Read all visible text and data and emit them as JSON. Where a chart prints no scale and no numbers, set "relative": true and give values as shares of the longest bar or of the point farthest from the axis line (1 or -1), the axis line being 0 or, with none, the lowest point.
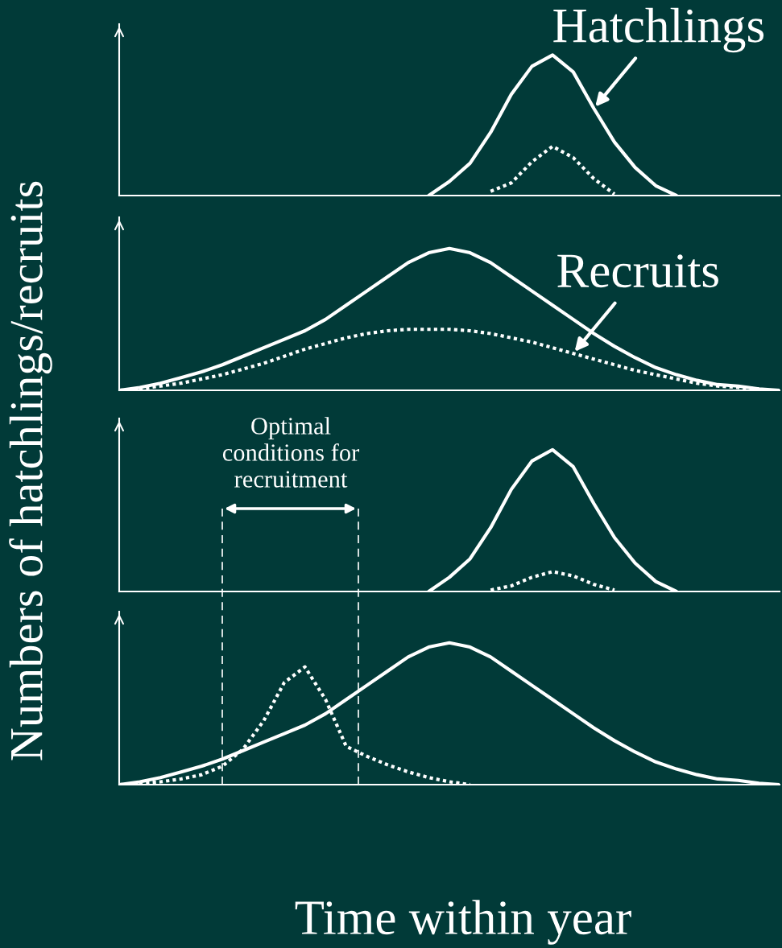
{
  "chart_data": [
    {
      "type": "line",
      "relative": true,
      "ylabel": "Numbers of hatchlings/recruits",
      "categories": [
        null,
        null,
        null,
        null,
        null,
        null,
        null,
        null,
        null,
        null,
        null,
        null,
        null,
        null,
        null,
        null,
        null,
        null,
        null,
        null,
        null,
        null,
        null,
        null,
        null,
        null,
        null,
        null,
        null,
        null,
        null,
        null,
        null
      ],
      "series": [
        {
          "name": "Hatchlings",
          "color": "#ffffff",
          "line_style": "solid",
          "values": [
            null,
            null,
            null,
            null,
            null,
            null,
            null,
            null,
            null,
            null,
            null,
            null,
            null,
            null,
            null,
            0.0,
            0.1,
            0.23,
            0.45,
            0.72,
            0.92,
            1.0,
            0.88,
            0.62,
            0.38,
            0.2,
            0.07,
            0.0,
            null,
            null,
            null,
            null,
            null
          ]
        },
        {
          "color": "#ffffff",
          "line_style": "dotted",
          "values": [
            null,
            null,
            null,
            null,
            null,
            null,
            null,
            null,
            null,
            null,
            null,
            null,
            null,
            null,
            null,
            null,
            null,
            null,
            0.03,
            0.09,
            0.24,
            0.35,
            0.27,
            0.12,
            0.01,
            null,
            null,
            null,
            null,
            null,
            null,
            null,
            null
          ]
        }
      ]
    },
    {
      "type": "line",
      "relative": true,
      "categories": [
        null,
        null,
        null,
        null,
        null,
        null,
        null,
        null,
        null,
        null,
        null,
        null,
        null,
        null,
        null,
        null,
        null,
        null,
        null,
        null,
        null,
        null,
        null,
        null,
        null,
        null,
        null,
        null,
        null,
        null,
        null,
        null,
        null
      ],
      "series": [
        {
          "color": "#ffffff",
          "line_style": "solid",
          "values": [
            0.0,
            0.02,
            0.05,
            0.09,
            0.13,
            0.18,
            0.24,
            0.3,
            0.36,
            0.42,
            0.5,
            0.6,
            0.7,
            0.8,
            0.9,
            0.97,
            1.0,
            0.97,
            0.9,
            0.8,
            0.7,
            0.6,
            0.5,
            0.4,
            0.31,
            0.23,
            0.16,
            0.11,
            0.07,
            0.04,
            0.03,
            0.01,
            0.0
          ]
        },
        {
          "name": "Recruits",
          "color": "#ffffff",
          "line_style": "dotted",
          "values": [
            0.0,
            0.01,
            0.03,
            0.05,
            0.08,
            0.11,
            0.15,
            0.19,
            0.24,
            0.29,
            0.33,
            0.37,
            0.4,
            0.42,
            0.43,
            0.43,
            0.43,
            0.42,
            0.4,
            0.37,
            0.34,
            0.3,
            0.26,
            0.22,
            0.18,
            0.14,
            0.11,
            0.08,
            0.05,
            0.03,
            0.02,
            0.01,
            null
          ]
        }
      ]
    },
    {
      "type": "line",
      "relative": true,
      "categories": [
        null,
        null,
        null,
        null,
        null,
        null,
        null,
        null,
        null,
        null,
        null,
        null,
        null,
        null,
        null,
        null,
        null,
        null,
        null,
        null,
        null,
        null,
        null,
        null,
        null,
        null,
        null,
        null,
        null,
        null,
        null,
        null,
        null
      ],
      "annotations": [
        "Optimal\nconditions for\nrecruitment"
      ],
      "series": [
        {
          "color": "#ffffff",
          "line_style": "solid",
          "values": [
            null,
            null,
            null,
            null,
            null,
            null,
            null,
            null,
            null,
            null,
            null,
            null,
            null,
            null,
            null,
            0.0,
            0.1,
            0.23,
            0.45,
            0.72,
            0.92,
            1.0,
            0.88,
            0.62,
            0.38,
            0.2,
            0.07,
            0.0,
            null,
            null,
            null,
            null,
            null
          ]
        },
        {
          "color": "#ffffff",
          "line_style": "dotted",
          "values": [
            null,
            null,
            null,
            null,
            null,
            null,
            null,
            null,
            null,
            null,
            null,
            null,
            null,
            null,
            null,
            null,
            null,
            null,
            0.01,
            0.04,
            0.1,
            0.14,
            0.11,
            0.05,
            0.01,
            null,
            null,
            null,
            null,
            null,
            null,
            null,
            null
          ]
        }
      ]
    },
    {
      "type": "line",
      "relative": true,
      "xlabel": "Time within year",
      "categories": [
        null,
        null,
        null,
        null,
        null,
        null,
        null,
        null,
        null,
        null,
        null,
        null,
        null,
        null,
        null,
        null,
        null,
        null,
        null,
        null,
        null,
        null,
        null,
        null,
        null,
        null,
        null,
        null,
        null,
        null,
        null,
        null,
        null
      ],
      "series": [
        {
          "color": "#ffffff",
          "line_style": "solid",
          "values": [
            0.0,
            0.02,
            0.05,
            0.09,
            0.13,
            0.18,
            0.24,
            0.3,
            0.36,
            0.42,
            0.5,
            0.6,
            0.7,
            0.8,
            0.9,
            0.97,
            1.0,
            0.97,
            0.9,
            0.8,
            0.7,
            0.6,
            0.5,
            0.4,
            0.31,
            0.23,
            0.16,
            0.11,
            0.07,
            0.04,
            0.03,
            0.01,
            0.0
          ]
        },
        {
          "color": "#ffffff",
          "line_style": "dotted",
          "values": [
            0.0,
            0.01,
            0.02,
            0.04,
            0.07,
            0.13,
            0.25,
            0.45,
            0.72,
            0.83,
            0.6,
            0.27,
            0.2,
            0.14,
            0.09,
            0.05,
            0.02,
            0.0,
            null,
            null,
            null,
            null,
            null,
            null,
            null,
            null,
            null,
            null,
            null,
            null,
            null,
            null,
            null
          ]
        }
      ]
    }
  ]
}
